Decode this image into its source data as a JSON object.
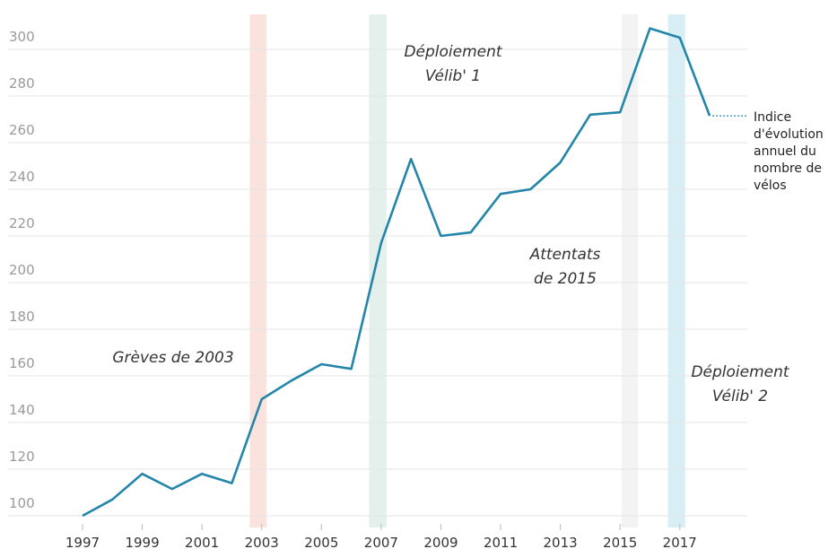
{
  "chart_data": {
    "type": "line",
    "x": [
      1997,
      1998,
      1999,
      2000,
      2001,
      2002,
      2003,
      2004,
      2005,
      2006,
      2007,
      2008,
      2009,
      2010,
      2011,
      2012,
      2013,
      2014,
      2015,
      2016,
      2017,
      2018
    ],
    "series": [
      {
        "name": "Indice d'évolution annuel du nombre de vélos",
        "color": "#2386a9",
        "values": [
          100,
          107,
          118,
          111.5,
          118,
          114,
          150,
          158,
          165,
          163,
          217,
          253,
          220,
          221.5,
          238,
          240,
          251.5,
          272,
          273,
          309,
          305,
          271.5
        ]
      }
    ],
    "xlim": [
      1994.5,
      2019.5
    ],
    "xticks": [
      1997,
      1999,
      2001,
      2003,
      2005,
      2007,
      2009,
      2011,
      2013,
      2015,
      2017
    ],
    "ylim": [
      95,
      315
    ],
    "yticks": [
      100,
      120,
      140,
      160,
      180,
      200,
      220,
      240,
      260,
      280,
      300
    ],
    "grid": true,
    "bands": [
      {
        "start": 2002.6,
        "end": 2003.16,
        "color": "#fbe3dd"
      },
      {
        "start": 2006.6,
        "end": 2007.18,
        "color": "#e3f0ec"
      },
      {
        "start": 2015.05,
        "end": 2015.6,
        "color": "#f3f3f3"
      },
      {
        "start": 2016.6,
        "end": 2017.18,
        "color": "#d8eef5"
      }
    ],
    "annotations": [
      {
        "lines": [
          "Grèves de 2003"
        ]
      },
      {
        "lines": [
          "Déploiement",
          "Vélib' 1"
        ]
      },
      {
        "lines": [
          "Attentats",
          "de 2015"
        ]
      },
      {
        "lines": [
          "Déploiement",
          "Vélib' 2"
        ]
      }
    ]
  }
}
